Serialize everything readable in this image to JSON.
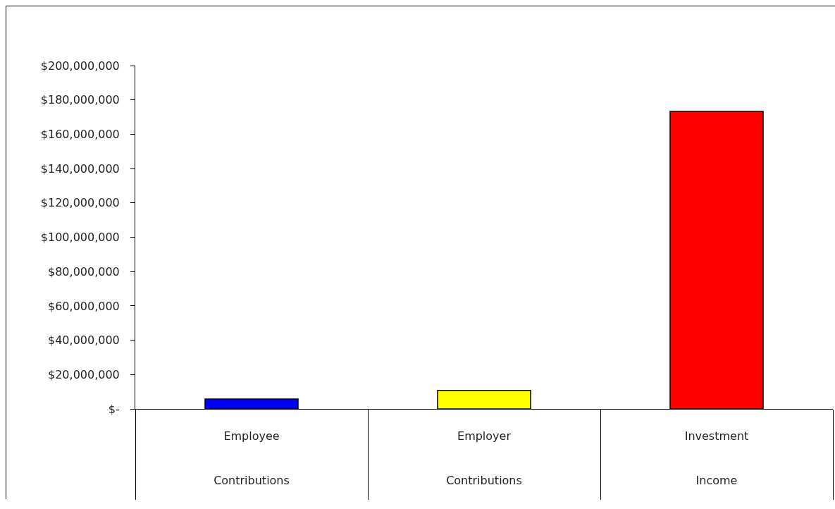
{
  "chart_data": {
    "type": "bar",
    "categories": [
      "Employee Contributions",
      "Employer Contributions",
      "Investment Income"
    ],
    "values": [
      5700000,
      10800000,
      173300000
    ],
    "colors": [
      "#0000ff",
      "#ffff00",
      "#ff0000"
    ],
    "ylim": [
      0,
      200000000
    ],
    "yticks": [
      {
        "value": 0,
        "label": "$-"
      },
      {
        "value": 20000000,
        "label": "$20,000,000"
      },
      {
        "value": 40000000,
        "label": "$40,000,000"
      },
      {
        "value": 60000000,
        "label": "$60,000,000"
      },
      {
        "value": 80000000,
        "label": "$80,000,000"
      },
      {
        "value": 100000000,
        "label": "$100,000,000"
      },
      {
        "value": 120000000,
        "label": "$120,000,000"
      },
      {
        "value": 140000000,
        "label": "$140,000,000"
      },
      {
        "value": 160000000,
        "label": "$160,000,000"
      },
      {
        "value": 180000000,
        "label": "$180,000,000"
      },
      {
        "value": 200000000,
        "label": "$200,000,000"
      }
    ]
  }
}
